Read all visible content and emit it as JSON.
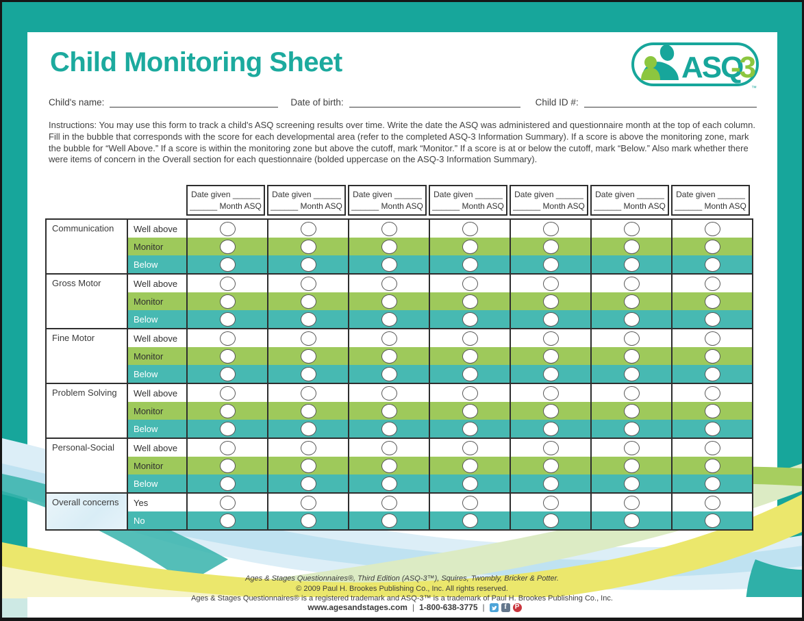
{
  "header": {
    "title": "Child Monitoring Sheet",
    "logo": {
      "asq": "ASQ",
      "three": "-3",
      "tm": "™"
    }
  },
  "fields": {
    "child_name_label": "Child's name:",
    "dob_label": "Date of birth:",
    "child_id_label": "Child ID #:"
  },
  "instructions": "Instructions: You may use this form to track a child's ASQ screening results over time. Write the date the ASQ was administered and questionnaire month at the top of each column. Fill in the bubble that corresponds with the score for each developmental area (refer to the completed ASQ-3 Information Summary). If a score is above the monitoring zone, mark the bubble for “Well Above.” If a score is within the monitoring zone but above the cutoff, mark “Monitor.” If a score is at or below the cutoff, mark “Below.” Also mark whether there were items of concern in the Overall section for each questionnaire (bolded uppercase on the ASQ-3 Information Summary).",
  "table": {
    "columns": 7,
    "column_header_line1": "Date given ______",
    "column_header_line2": "______ Month ASQ",
    "sections": [
      {
        "area": "Communication",
        "options": [
          {
            "label": "Well above",
            "style": "plain"
          },
          {
            "label": "Monitor",
            "style": "green"
          },
          {
            "label": "Below",
            "style": "teal"
          }
        ]
      },
      {
        "area": "Gross Motor",
        "options": [
          {
            "label": "Well above",
            "style": "plain"
          },
          {
            "label": "Monitor",
            "style": "green"
          },
          {
            "label": "Below",
            "style": "teal"
          }
        ]
      },
      {
        "area": "Fine Motor",
        "options": [
          {
            "label": "Well above",
            "style": "plain"
          },
          {
            "label": "Monitor",
            "style": "green"
          },
          {
            "label": "Below",
            "style": "teal"
          }
        ]
      },
      {
        "area": "Problem Solving",
        "options": [
          {
            "label": "Well above",
            "style": "plain"
          },
          {
            "label": "Monitor",
            "style": "green"
          },
          {
            "label": "Below",
            "style": "teal"
          }
        ]
      },
      {
        "area": "Personal-Social",
        "options": [
          {
            "label": "Well above",
            "style": "plain"
          },
          {
            "label": "Monitor",
            "style": "green"
          },
          {
            "label": "Below",
            "style": "teal"
          }
        ]
      },
      {
        "area": "Overall concerns",
        "options": [
          {
            "label": "Yes",
            "style": "plain"
          },
          {
            "label": "No",
            "style": "teal"
          }
        ]
      }
    ]
  },
  "footer": {
    "credit_line1": "Ages & Stages Questionnaires®, Third Edition (ASQ-3™), Squires, Twombly, Bricker & Potter.",
    "credit_line2": "© 2009 Paul H. Brookes Publishing Co., Inc. All rights reserved.",
    "credit_line3": "Ages & Stages Questionnaires® is a registered trademark and ASQ-3™ is a trademark of Paul H. Brookes Publishing Co., Inc.",
    "website": "www.agesandstages.com",
    "phone": "1-800-638-3775",
    "divider": "|",
    "social_icons": [
      "twitter-icon",
      "facebook-icon",
      "pinterest-icon"
    ]
  },
  "colors": {
    "frame_teal": "#17A69B",
    "title_teal": "#1CAA9E",
    "logo_green": "#8CC63F",
    "monitor_green": "#9EC95B",
    "below_teal": "#47B9B2",
    "border_dark": "#2e2e2e",
    "text_dark": "#3e3e3e",
    "wave_light_blue": "#BFE2F1",
    "wave_pale_blue": "#DCEEF7",
    "wave_teal": "#36B3AB",
    "wave_green": "#A7CE5F",
    "wave_pale_green": "#DCEBC4",
    "wave_yellow": "#EBE76C",
    "wave_pale_yellow": "#F6F4C9",
    "wave_pale_teal": "#CDE9E4",
    "twitter_blue": "#4DA4D8",
    "facebook_blue": "#64778C",
    "pinterest_red": "#C9353D"
  }
}
